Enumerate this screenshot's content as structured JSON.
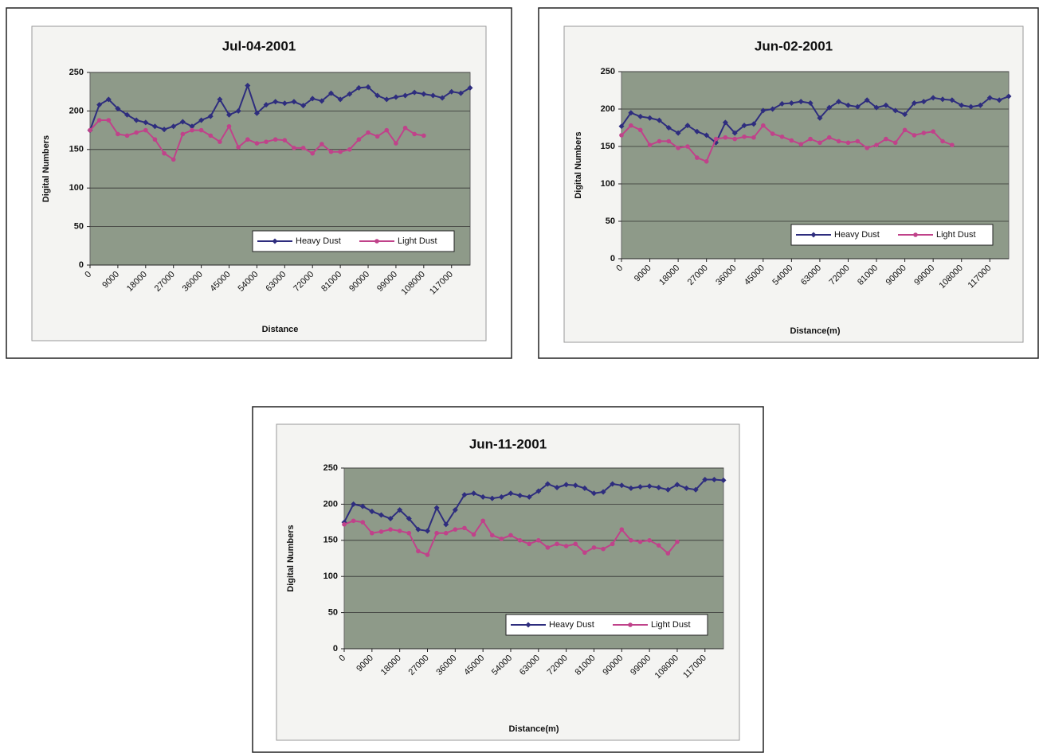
{
  "chart_data": [
    {
      "type": "line",
      "title": "Jul-04-2001",
      "x_label": "Distance",
      "y_label": "Digital Numbers",
      "x": [
        0,
        3000,
        6000,
        9000,
        12000,
        15000,
        18000,
        21000,
        24000,
        27000,
        30000,
        33000,
        36000,
        39000,
        42000,
        45000,
        48000,
        51000,
        54000,
        57000,
        60000,
        63000,
        66000,
        69000,
        72000,
        75000,
        78000,
        81000,
        84000,
        87000,
        90000,
        93000,
        96000,
        99000,
        102000,
        105000,
        108000,
        111000,
        114000,
        117000,
        120000,
        123000
      ],
      "xlim": [
        0,
        123000
      ],
      "xticks": [
        0,
        9000,
        18000,
        27000,
        36000,
        45000,
        54000,
        63000,
        72000,
        81000,
        90000,
        99000,
        108000,
        117000
      ],
      "ylim": [
        0,
        250
      ],
      "yticks": [
        0,
        50,
        100,
        150,
        200,
        250
      ],
      "grid": true,
      "legend": "lower right",
      "series": [
        {
          "name": "Heavy Dust",
          "color": "#2e2d7e",
          "marker": "diamond",
          "values": [
            175,
            208,
            215,
            203,
            195,
            188,
            185,
            180,
            176,
            180,
            186,
            180,
            188,
            193,
            215,
            195,
            200,
            233,
            197,
            208,
            212,
            210,
            212,
            207,
            216,
            213,
            223,
            215,
            222,
            230,
            231,
            220,
            215,
            218,
            220,
            224,
            222,
            220,
            217,
            225,
            223,
            230
          ]
        },
        {
          "name": "Light Dust",
          "color": "#c0428a",
          "marker": "circle",
          "values": [
            175,
            188,
            188,
            170,
            168,
            172,
            175,
            163,
            145,
            137,
            170,
            175,
            175,
            168,
            160,
            180,
            153,
            163,
            158,
            160,
            163,
            162,
            152,
            152,
            145,
            157,
            147,
            147,
            150,
            163,
            172,
            167,
            175,
            158,
            178,
            170,
            168,
            null,
            null,
            null,
            null,
            null
          ]
        }
      ]
    },
    {
      "type": "line",
      "title": "Jun-02-2001",
      "x_label": "Distance(m)",
      "y_label": "Digital Numbers",
      "x": [
        0,
        3000,
        6000,
        9000,
        12000,
        15000,
        18000,
        21000,
        24000,
        27000,
        30000,
        33000,
        36000,
        39000,
        42000,
        45000,
        48000,
        51000,
        54000,
        57000,
        60000,
        63000,
        66000,
        69000,
        72000,
        75000,
        78000,
        81000,
        84000,
        87000,
        90000,
        93000,
        96000,
        99000,
        102000,
        105000,
        108000,
        111000,
        114000,
        117000,
        120000,
        123000
      ],
      "xlim": [
        0,
        123000
      ],
      "xticks": [
        0,
        9000,
        18000,
        27000,
        36000,
        45000,
        54000,
        63000,
        72000,
        81000,
        90000,
        99000,
        108000,
        117000
      ],
      "ylim": [
        0,
        250
      ],
      "yticks": [
        0,
        50,
        100,
        150,
        200,
        250
      ],
      "grid": true,
      "legend": "lower right",
      "series": [
        {
          "name": "Heavy Dust",
          "color": "#2e2d7e",
          "marker": "diamond",
          "values": [
            177,
            195,
            190,
            188,
            185,
            175,
            168,
            178,
            170,
            165,
            155,
            182,
            168,
            178,
            180,
            198,
            200,
            207,
            208,
            210,
            208,
            188,
            202,
            210,
            205,
            203,
            212,
            202,
            205,
            198,
            193,
            208,
            210,
            215,
            213,
            212,
            205,
            203,
            205,
            215,
            212,
            217
          ]
        },
        {
          "name": "Light Dust",
          "color": "#c0428a",
          "marker": "circle",
          "values": [
            165,
            178,
            172,
            152,
            157,
            157,
            148,
            150,
            135,
            130,
            160,
            162,
            160,
            163,
            162,
            178,
            167,
            163,
            158,
            153,
            160,
            155,
            162,
            157,
            155,
            157,
            148,
            152,
            160,
            155,
            172,
            165,
            168,
            170,
            157,
            152,
            null,
            null,
            null,
            null,
            null,
            null
          ]
        }
      ]
    },
    {
      "type": "line",
      "title": "Jun-11-2001",
      "x_label": "Distance(m)",
      "y_label": "Digital Numbers",
      "x": [
        0,
        3000,
        6000,
        9000,
        12000,
        15000,
        18000,
        21000,
        24000,
        27000,
        30000,
        33000,
        36000,
        39000,
        42000,
        45000,
        48000,
        51000,
        54000,
        57000,
        60000,
        63000,
        66000,
        69000,
        72000,
        75000,
        78000,
        81000,
        84000,
        87000,
        90000,
        93000,
        96000,
        99000,
        102000,
        105000,
        108000,
        111000,
        114000,
        117000,
        120000,
        123000
      ],
      "xlim": [
        0,
        123000
      ],
      "xticks": [
        0,
        9000,
        18000,
        27000,
        36000,
        45000,
        54000,
        63000,
        72000,
        81000,
        90000,
        99000,
        108000,
        117000
      ],
      "ylim": [
        0,
        250
      ],
      "yticks": [
        0,
        50,
        100,
        150,
        200,
        250
      ],
      "grid": true,
      "legend": "lower right",
      "series": [
        {
          "name": "Heavy Dust",
          "color": "#2e2d7e",
          "marker": "diamond",
          "values": [
            175,
            200,
            197,
            190,
            185,
            180,
            192,
            180,
            165,
            163,
            195,
            172,
            192,
            213,
            215,
            210,
            208,
            210,
            215,
            212,
            210,
            218,
            228,
            223,
            227,
            226,
            222,
            215,
            217,
            228,
            226,
            222,
            224,
            225,
            223,
            220,
            227,
            222,
            220,
            234,
            234,
            233
          ]
        },
        {
          "name": "Light Dust",
          "color": "#c0428a",
          "marker": "circle",
          "values": [
            172,
            177,
            175,
            160,
            162,
            165,
            163,
            160,
            135,
            130,
            160,
            160,
            165,
            167,
            158,
            177,
            157,
            152,
            157,
            150,
            145,
            150,
            140,
            145,
            142,
            145,
            133,
            140,
            138,
            145,
            165,
            150,
            148,
            150,
            143,
            132,
            148,
            null,
            null,
            null,
            null,
            null
          ]
        }
      ]
    }
  ]
}
